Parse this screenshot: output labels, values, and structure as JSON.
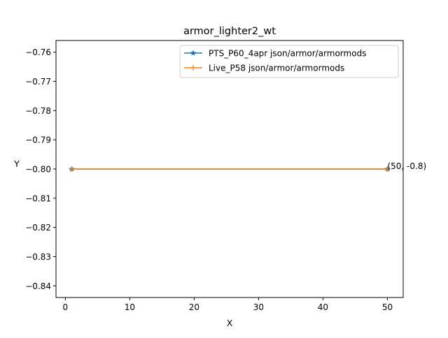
{
  "chart_data": {
    "type": "line",
    "title": "armor_lighter2_wt",
    "xlabel": "X",
    "ylabel": "Y",
    "xlim": [
      -1.45,
      52.45
    ],
    "ylim": [
      -0.844,
      -0.756
    ],
    "xticks": [
      0,
      10,
      20,
      30,
      40,
      50
    ],
    "yticks": [
      -0.76,
      -0.77,
      -0.78,
      -0.79,
      -0.8,
      -0.81,
      -0.82,
      -0.83,
      -0.84
    ],
    "xtick_labels": [
      "0",
      "10",
      "20",
      "30",
      "40",
      "50"
    ],
    "ytick_labels": [
      "−0.76",
      "−0.77",
      "−0.78",
      "−0.79",
      "−0.80",
      "−0.81",
      "−0.82",
      "−0.83",
      "−0.84"
    ],
    "grid": false,
    "legend_position": "upper right",
    "series": [
      {
        "name": "PTS_P60_4apr json/armor/armormods",
        "color": "#1f77b4",
        "marker": "star",
        "x": [
          1,
          50
        ],
        "y": [
          -0.8,
          -0.8
        ]
      },
      {
        "name": "Live_P58 json/armor/armormods",
        "color": "#ff7f0e",
        "marker": "plus",
        "x": [
          1,
          50
        ],
        "y": [
          -0.8,
          -0.8
        ]
      }
    ],
    "annotations": [
      {
        "text": "(50, -0.8)",
        "x": 50,
        "y": -0.8
      }
    ]
  }
}
